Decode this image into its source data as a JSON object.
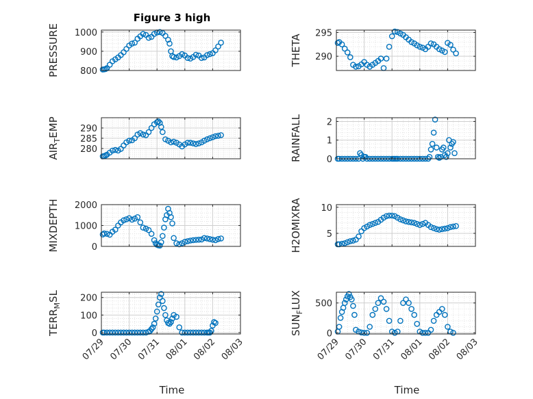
{
  "figure": {
    "title": "Figure 3 high",
    "marker_color": "#0072BD",
    "x_axis_label": "Time",
    "x_tick_labels": [
      "07/29",
      "07/30",
      "07/31",
      "08/01",
      "08/02",
      "08/03"
    ],
    "x_range_days": [
      0,
      5
    ],
    "x_ticks_days": [
      0,
      1,
      2,
      3,
      4,
      5
    ]
  },
  "chart_data": [
    {
      "type": "scatter",
      "ylabel": "PRESSURE",
      "ylim": [
        800,
        1010
      ],
      "yticks": [
        800,
        900,
        1000
      ],
      "grid": true,
      "x": [
        0.05,
        0.1,
        0.15,
        0.2,
        0.3,
        0.4,
        0.5,
        0.6,
        0.7,
        0.8,
        0.9,
        1.0,
        1.1,
        1.2,
        1.3,
        1.4,
        1.5,
        1.6,
        1.7,
        1.8,
        1.9,
        2.0,
        2.1,
        2.2,
        2.3,
        2.4,
        2.45,
        2.5,
        2.55,
        2.6,
        2.7,
        2.8,
        2.9,
        3.0,
        3.1,
        3.2,
        3.3,
        3.4,
        3.5,
        3.6,
        3.7,
        3.8,
        3.9,
        4.0,
        4.1,
        4.2,
        4.3
      ],
      "y": [
        805,
        806,
        808,
        812,
        830,
        848,
        858,
        868,
        880,
        895,
        912,
        930,
        940,
        945,
        965,
        978,
        990,
        985,
        970,
        975,
        990,
        998,
        1000,
        995,
        980,
        960,
        940,
        900,
        875,
        870,
        868,
        875,
        885,
        878,
        865,
        862,
        870,
        882,
        878,
        865,
        868,
        880,
        885,
        890,
        905,
        925,
        945
      ]
    },
    {
      "type": "scatter",
      "ylabel": "THETA",
      "ylim": [
        287,
        295.5
      ],
      "yticks": [
        290,
        295
      ],
      "grid": true,
      "x": [
        0.05,
        0.1,
        0.2,
        0.3,
        0.4,
        0.5,
        0.6,
        0.7,
        0.8,
        0.9,
        1.0,
        1.1,
        1.2,
        1.3,
        1.4,
        1.5,
        1.6,
        1.7,
        1.8,
        1.9,
        2.0,
        2.1,
        2.2,
        2.3,
        2.4,
        2.5,
        2.6,
        2.7,
        2.8,
        2.9,
        3.0,
        3.1,
        3.2,
        3.3,
        3.4,
        3.5,
        3.6,
        3.7,
        3.8,
        3.9,
        4.0,
        4.1,
        4.2,
        4.3
      ],
      "y": [
        292.8,
        293.0,
        292.5,
        291.6,
        290.8,
        289.8,
        288.2,
        287.8,
        287.9,
        288.3,
        288.8,
        288.2,
        287.8,
        288.2,
        288.6,
        289.0,
        289.5,
        287.5,
        289.5,
        292.0,
        294.2,
        295.2,
        295.1,
        294.8,
        294.5,
        294.0,
        293.5,
        293.0,
        292.7,
        292.3,
        292.0,
        291.8,
        291.5,
        292.0,
        292.7,
        292.5,
        292.0,
        291.5,
        291.2,
        290.9,
        292.8,
        292.4,
        291.4,
        290.6
      ]
    },
    {
      "type": "scatter",
      "ylabel": "AIR_TEMP",
      "ylim": [
        275,
        295
      ],
      "yticks": [
        280,
        285,
        290
      ],
      "grid": true,
      "x": [
        0.05,
        0.1,
        0.15,
        0.2,
        0.3,
        0.4,
        0.5,
        0.6,
        0.7,
        0.8,
        0.9,
        1.0,
        1.1,
        1.2,
        1.3,
        1.4,
        1.5,
        1.6,
        1.7,
        1.8,
        1.9,
        2.0,
        2.05,
        2.1,
        2.15,
        2.2,
        2.3,
        2.4,
        2.5,
        2.6,
        2.7,
        2.8,
        2.9,
        3.0,
        3.1,
        3.2,
        3.3,
        3.4,
        3.5,
        3.6,
        3.7,
        3.8,
        3.9,
        4.0,
        4.1,
        4.2,
        4.3
      ],
      "y": [
        276.2,
        276.3,
        276.6,
        277.0,
        278.0,
        279.0,
        279.3,
        279.0,
        279.8,
        281.5,
        283.0,
        283.8,
        284.0,
        285.0,
        286.8,
        287.5,
        286.8,
        286.5,
        288.0,
        290.0,
        291.8,
        292.8,
        293.2,
        292.5,
        290.5,
        288.0,
        284.5,
        283.8,
        283.0,
        283.3,
        282.8,
        282.0,
        281.0,
        282.0,
        282.8,
        282.8,
        282.5,
        282.2,
        282.5,
        283.0,
        283.8,
        284.5,
        285.0,
        285.5,
        286.0,
        286.2,
        286.5
      ]
    },
    {
      "type": "scatter",
      "ylabel": "RAINFALL",
      "ylim": [
        0,
        2.2
      ],
      "yticks": [
        0,
        1,
        2
      ],
      "grid": true,
      "x": [
        0.05,
        0.1,
        0.2,
        0.3,
        0.4,
        0.5,
        0.6,
        0.7,
        0.8,
        0.85,
        0.9,
        0.95,
        1.0,
        1.05,
        1.1,
        1.2,
        1.3,
        1.4,
        1.5,
        1.6,
        1.7,
        1.8,
        1.9,
        2.0,
        2.05,
        2.1,
        2.15,
        2.2,
        2.3,
        2.4,
        2.5,
        2.6,
        2.7,
        2.8,
        2.9,
        3.0,
        3.1,
        3.2,
        3.3,
        3.35,
        3.4,
        3.45,
        3.5,
        3.55,
        3.6,
        3.65,
        3.7,
        3.75,
        3.8,
        3.85,
        3.9,
        3.95,
        4.0,
        4.05,
        4.1,
        4.15,
        4.2,
        4.25
      ],
      "y": [
        0,
        0,
        0,
        0,
        0,
        0,
        0,
        0,
        0,
        0.3,
        0.2,
        0,
        0.1,
        0.1,
        0,
        0,
        0,
        0,
        0,
        0,
        0,
        0,
        0,
        0,
        0,
        0,
        0,
        0,
        0,
        0,
        0,
        0,
        0,
        0,
        0,
        0,
        0,
        0,
        0,
        0.1,
        0.5,
        0.8,
        1.4,
        2.1,
        0.6,
        0.1,
        0.05,
        0.1,
        0.5,
        0.6,
        0.2,
        0.1,
        0.3,
        1.0,
        0.6,
        0.8,
        0.9,
        0.3
      ]
    },
    {
      "type": "scatter",
      "ylabel": "MIXDEPTH",
      "ylim": [
        0,
        2000
      ],
      "yticks": [
        0,
        1000,
        2000
      ],
      "grid": true,
      "x": [
        0.05,
        0.1,
        0.2,
        0.3,
        0.4,
        0.5,
        0.6,
        0.7,
        0.8,
        0.9,
        1.0,
        1.1,
        1.2,
        1.3,
        1.4,
        1.5,
        1.6,
        1.7,
        1.8,
        1.9,
        1.95,
        2.0,
        2.05,
        2.1,
        2.15,
        2.2,
        2.25,
        2.3,
        2.35,
        2.4,
        2.45,
        2.5,
        2.55,
        2.6,
        2.7,
        2.8,
        2.9,
        3.0,
        3.1,
        3.2,
        3.3,
        3.4,
        3.5,
        3.6,
        3.7,
        3.8,
        3.9,
        4.0,
        4.1,
        4.2,
        4.3
      ],
      "y": [
        570,
        620,
        600,
        560,
        700,
        800,
        1000,
        1150,
        1250,
        1300,
        1350,
        1280,
        1330,
        1400,
        1150,
        900,
        850,
        780,
        600,
        300,
        150,
        80,
        50,
        40,
        200,
        500,
        900,
        1300,
        1500,
        1800,
        1600,
        1400,
        1100,
        400,
        150,
        100,
        150,
        220,
        250,
        280,
        300,
        310,
        320,
        330,
        400,
        380,
        350,
        320,
        300,
        350,
        380
      ]
    },
    {
      "type": "scatter",
      "ylabel": "H2OMIXRA",
      "ylim": [
        2.5,
        10.5
      ],
      "yticks": [
        5,
        10
      ],
      "grid": true,
      "x": [
        0.05,
        0.1,
        0.2,
        0.3,
        0.4,
        0.5,
        0.6,
        0.7,
        0.8,
        0.9,
        1.0,
        1.1,
        1.2,
        1.3,
        1.4,
        1.5,
        1.6,
        1.7,
        1.8,
        1.9,
        2.0,
        2.1,
        2.2,
        2.3,
        2.4,
        2.5,
        2.6,
        2.7,
        2.8,
        2.9,
        3.0,
        3.1,
        3.2,
        3.3,
        3.4,
        3.5,
        3.6,
        3.7,
        3.8,
        3.9,
        4.0,
        4.1,
        4.2,
        4.3
      ],
      "y": [
        2.9,
        2.9,
        3.0,
        3.1,
        3.3,
        3.5,
        3.6,
        3.8,
        4.4,
        5.4,
        6.0,
        6.3,
        6.6,
        6.8,
        7.0,
        7.2,
        7.6,
        8.0,
        8.3,
        8.4,
        8.4,
        8.3,
        8.0,
        7.7,
        7.5,
        7.3,
        7.2,
        7.1,
        7.0,
        6.8,
        6.6,
        6.8,
        7.0,
        6.6,
        6.2,
        6.0,
        5.8,
        5.7,
        5.8,
        5.9,
        6.0,
        6.2,
        6.3,
        6.4
      ]
    },
    {
      "type": "scatter",
      "ylabel": "TERR_MSL",
      "ylim": [
        -8,
        230
      ],
      "yticks": [
        0,
        100,
        200
      ],
      "grid": true,
      "x": [
        0.05,
        0.1,
        0.2,
        0.3,
        0.4,
        0.5,
        0.6,
        0.7,
        0.8,
        0.9,
        1.0,
        1.1,
        1.2,
        1.3,
        1.4,
        1.5,
        1.6,
        1.7,
        1.75,
        1.8,
        1.85,
        1.9,
        1.95,
        2.0,
        2.05,
        2.1,
        2.15,
        2.2,
        2.25,
        2.3,
        2.35,
        2.4,
        2.45,
        2.5,
        2.55,
        2.6,
        2.7,
        2.8,
        2.9,
        3.0,
        3.1,
        3.2,
        3.3,
        3.4,
        3.5,
        3.6,
        3.7,
        3.8,
        3.85,
        3.9,
        3.95,
        4.0,
        4.05,
        4.1
      ],
      "y": [
        0,
        0,
        0,
        0,
        0,
        0,
        0,
        0,
        0,
        0,
        0,
        0,
        0,
        0,
        0,
        0,
        0,
        5,
        10,
        20,
        30,
        50,
        80,
        120,
        160,
        200,
        220,
        180,
        140,
        100,
        70,
        55,
        50,
        60,
        80,
        100,
        90,
        30,
        0,
        0,
        0,
        0,
        0,
        0,
        0,
        0,
        0,
        0,
        0,
        0,
        10,
        40,
        60,
        55
      ]
    },
    {
      "type": "scatter",
      "ylabel": "SUN_FLUX",
      "ylim": [
        -20,
        680
      ],
      "yticks": [
        0,
        500
      ],
      "grid": true,
      "x": [
        0.05,
        0.1,
        0.15,
        0.2,
        0.25,
        0.3,
        0.35,
        0.4,
        0.45,
        0.5,
        0.55,
        0.6,
        0.65,
        0.7,
        0.8,
        0.9,
        1.0,
        1.1,
        1.2,
        1.3,
        1.4,
        1.5,
        1.6,
        1.7,
        1.8,
        1.9,
        2.0,
        2.1,
        2.2,
        2.3,
        2.4,
        2.5,
        2.6,
        2.7,
        2.8,
        2.9,
        3.0,
        3.1,
        3.2,
        3.3,
        3.4,
        3.5,
        3.6,
        3.7,
        3.8,
        3.9,
        4.0,
        4.1,
        4.2
      ],
      "y": [
        20,
        100,
        250,
        350,
        420,
        500,
        560,
        610,
        650,
        600,
        560,
        450,
        300,
        50,
        20,
        5,
        0,
        0,
        100,
        300,
        400,
        500,
        580,
        520,
        400,
        200,
        20,
        0,
        20,
        200,
        500,
        560,
        500,
        400,
        300,
        150,
        20,
        0,
        0,
        0,
        50,
        200,
        300,
        350,
        400,
        300,
        100,
        20,
        0
      ]
    }
  ]
}
